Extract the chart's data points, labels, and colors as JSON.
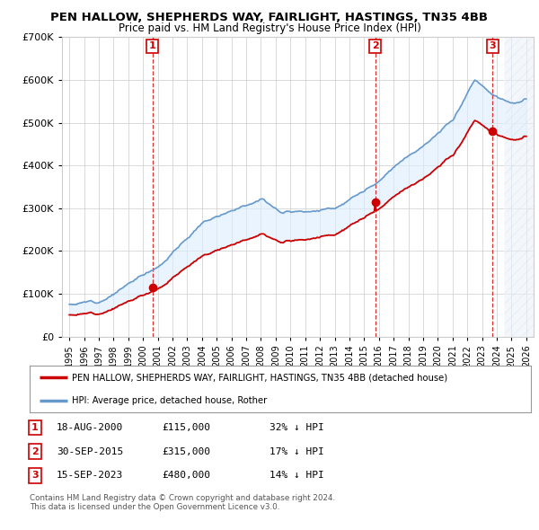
{
  "title": "PEN HALLOW, SHEPHERDS WAY, FAIRLIGHT, HASTINGS, TN35 4BB",
  "subtitle": "Price paid vs. HM Land Registry's House Price Index (HPI)",
  "ylim": [
    0,
    700000
  ],
  "yticks": [
    0,
    100000,
    200000,
    300000,
    400000,
    500000,
    600000,
    700000
  ],
  "xlim_start": 1994.5,
  "xlim_end": 2026.5,
  "sale_events": [
    {
      "num": 1,
      "date_num": 2000.63,
      "price": 115000,
      "label": "18-AUG-2000",
      "price_str": "£115,000",
      "hpi_str": "32% ↓ HPI"
    },
    {
      "num": 2,
      "date_num": 2015.75,
      "price": 315000,
      "label": "30-SEP-2015",
      "price_str": "£315,000",
      "hpi_str": "17% ↓ HPI"
    },
    {
      "num": 3,
      "date_num": 2023.71,
      "price": 480000,
      "label": "15-SEP-2023",
      "price_str": "£480,000",
      "hpi_str": "14% ↓ HPI"
    }
  ],
  "legend_line1": "PEN HALLOW, SHEPHERDS WAY, FAIRLIGHT, HASTINGS, TN35 4BB (detached house)",
  "legend_line2": "HPI: Average price, detached house, Rother",
  "footer1": "Contains HM Land Registry data © Crown copyright and database right 2024.",
  "footer2": "This data is licensed under the Open Government Licence v3.0.",
  "red_color": "#cc0000",
  "blue_color": "#6699cc",
  "fill_color": "#ddeeff",
  "background_color": "#ffffff",
  "grid_color": "#cccccc"
}
